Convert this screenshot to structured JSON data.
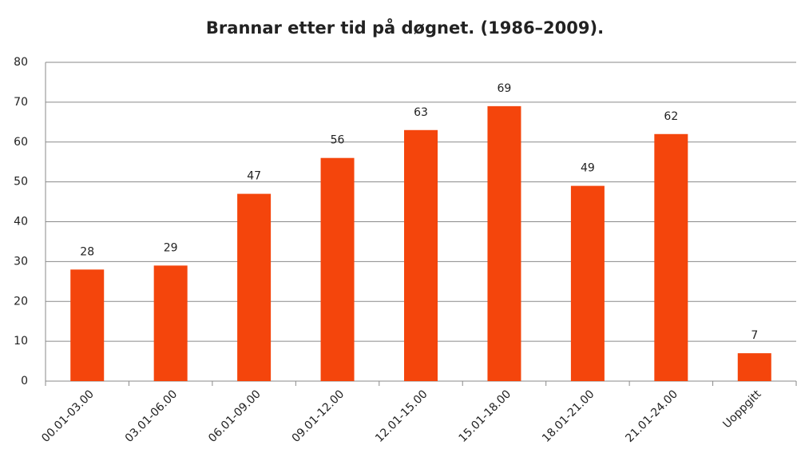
{
  "chart_data": {
    "type": "bar",
    "title": "Brannar etter tid på døgnet. (1986–2009).",
    "categories": [
      "00.01-03.00",
      "03.01-06.00",
      "06.01-09.00",
      "09.01-12.00",
      "12.01-15.00",
      "15.01-18.00",
      "18.01-21.00",
      "21.01-24.00",
      "Uoppgitt"
    ],
    "values": [
      28,
      29,
      47,
      56,
      63,
      69,
      49,
      62,
      7
    ],
    "color": "#f4450c",
    "ylim": [
      0,
      80
    ],
    "yticks": [
      0,
      10,
      20,
      30,
      40,
      50,
      60,
      70,
      80
    ],
    "grid": true
  }
}
